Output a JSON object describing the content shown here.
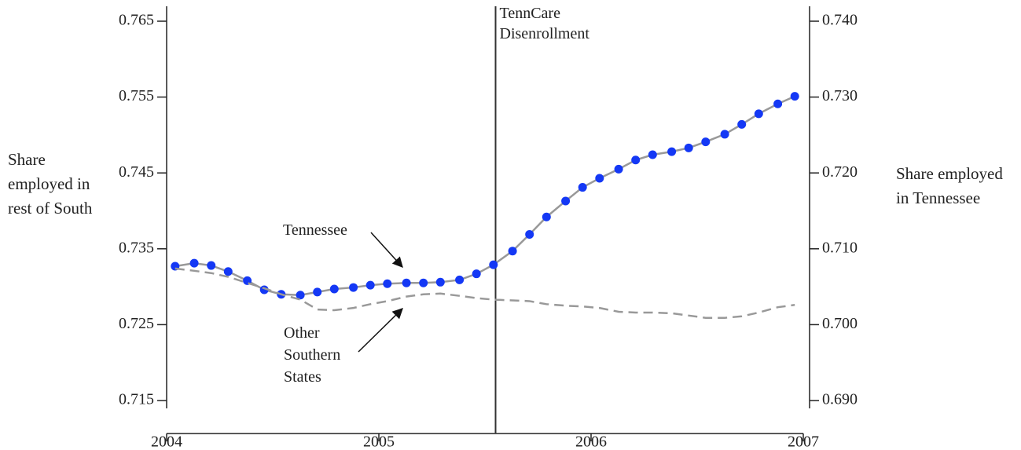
{
  "chart_data": {
    "type": "line",
    "y_label": "Share employed in rest of South",
    "y2_label": "Share employed in Tennessee",
    "x": [
      2004.04,
      2004.13,
      2004.21,
      2004.29,
      2004.38,
      2004.46,
      2004.54,
      2004.63,
      2004.71,
      2004.79,
      2004.88,
      2004.96,
      2005.04,
      2005.13,
      2005.21,
      2005.29,
      2005.38,
      2005.46,
      2005.54,
      2005.63,
      2005.71,
      2005.79,
      2005.88,
      2005.96,
      2006.04,
      2006.13,
      2006.21,
      2006.29,
      2006.38,
      2006.46,
      2006.54,
      2006.63,
      2006.71,
      2006.79,
      2006.88,
      2006.96
    ],
    "series": [
      {
        "name": "Tennessee",
        "axis": "y2",
        "color": "#1438f5",
        "line_color": "#999999",
        "markers": true,
        "values": [
          0.7077,
          0.7081,
          0.7078,
          0.707,
          0.7058,
          0.7046,
          0.704,
          0.7039,
          0.7043,
          0.7047,
          0.7049,
          0.7052,
          0.7054,
          0.7055,
          0.7055,
          0.7056,
          0.7059,
          0.7067,
          0.7079,
          0.7097,
          0.7119,
          0.7142,
          0.7163,
          0.7181,
          0.7193,
          0.7205,
          0.7217,
          0.7224,
          0.7228,
          0.7233,
          0.7241,
          0.7251,
          0.7264,
          0.7278,
          0.7291,
          0.7301
        ]
      },
      {
        "name": "Other Southern States",
        "color": "#999999",
        "dashed": true,
        "markers": false,
        "values": [
          0.7324,
          0.7321,
          0.7318,
          0.7313,
          0.7305,
          0.7298,
          0.729,
          0.7283,
          0.727,
          0.7269,
          0.7272,
          0.7277,
          0.7281,
          0.7287,
          0.729,
          0.7291,
          0.7288,
          0.7285,
          0.7283,
          0.7282,
          0.7281,
          0.7277,
          0.7275,
          0.7274,
          0.7272,
          0.7267,
          0.7266,
          0.7266,
          0.7265,
          0.7262,
          0.7259,
          0.7259,
          0.7261,
          0.7266,
          0.7273,
          0.7276
        ]
      }
    ],
    "xlim": [
      2004,
      2007
    ],
    "xticks": [
      2004,
      2005,
      2006,
      2007
    ],
    "ylim": [
      0.715,
      0.765
    ],
    "yticks": [
      0.715,
      0.725,
      0.735,
      0.745,
      0.755,
      0.765
    ],
    "y2lim": [
      0.69,
      0.74
    ],
    "y2ticks": [
      {
        "value": 0.69,
        "label": "0.690"
      },
      {
        "value": 0.7,
        "label": "0.700"
      },
      {
        "value": 0.71,
        "label": "0.710"
      },
      {
        "value": 0.72,
        "label": "0.720"
      },
      {
        "value": 0.73,
        "label": "0.730"
      },
      {
        "value": 0.74,
        "label": "0.740"
      }
    ],
    "event": {
      "x": 2005.55,
      "label": "TennCare Disenrollment"
    }
  }
}
